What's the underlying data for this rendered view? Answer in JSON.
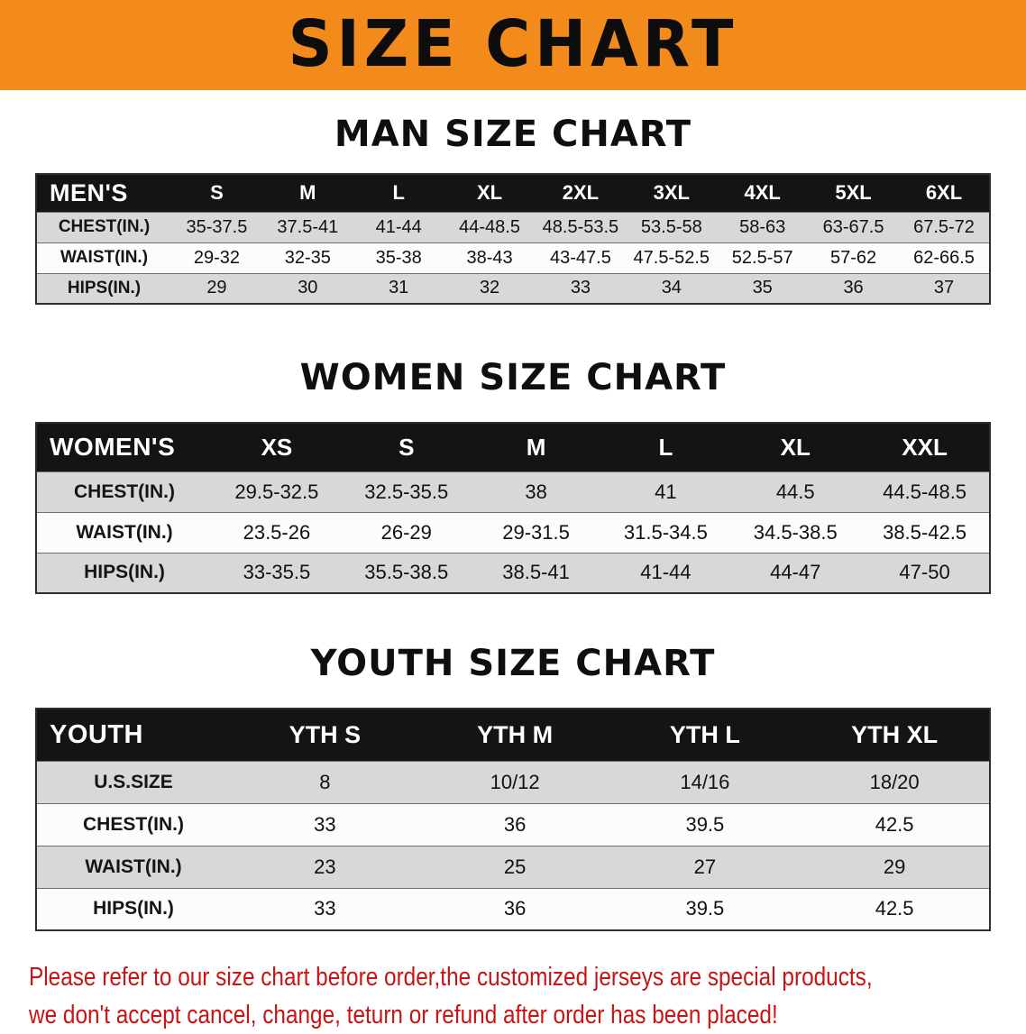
{
  "banner": {
    "title": "SIZE CHART",
    "bg_color": "#f28a1c",
    "title_color": "#0d0d0d"
  },
  "men": {
    "heading": "MAN SIZE CHART",
    "table": {
      "header": [
        "MEN'S",
        "S",
        "M",
        "L",
        "XL",
        "2XL",
        "3XL",
        "4XL",
        "5XL",
        "6XL"
      ],
      "rows": [
        {
          "label": "CHEST(IN.)",
          "values": [
            "35-37.5",
            "37.5-41",
            "41-44",
            "44-48.5",
            "48.5-53.5",
            "53.5-58",
            "58-63",
            "63-67.5",
            "67.5-72"
          ]
        },
        {
          "label": "WAIST(IN.)",
          "values": [
            "29-32",
            "32-35",
            "35-38",
            "38-43",
            "43-47.5",
            "47.5-52.5",
            "52.5-57",
            "57-62",
            "62-66.5"
          ]
        },
        {
          "label": "HIPS(IN.)",
          "values": [
            "29",
            "30",
            "31",
            "32",
            "33",
            "34",
            "35",
            "36",
            "37"
          ]
        }
      ]
    }
  },
  "women": {
    "heading": "WOMEN SIZE CHART",
    "table": {
      "header": [
        "WOMEN'S",
        "XS",
        "S",
        "M",
        "L",
        "XL",
        "XXL"
      ],
      "rows": [
        {
          "label": "CHEST(IN.)",
          "values": [
            "29.5-32.5",
            "32.5-35.5",
            "38",
            "41",
            "44.5",
            "44.5-48.5"
          ]
        },
        {
          "label": "WAIST(IN.)",
          "values": [
            "23.5-26",
            "26-29",
            "29-31.5",
            "31.5-34.5",
            "34.5-38.5",
            "38.5-42.5"
          ]
        },
        {
          "label": "HIPS(IN.)",
          "values": [
            "33-35.5",
            "35.5-38.5",
            "38.5-41",
            "41-44",
            "44-47",
            "47-50"
          ]
        }
      ]
    }
  },
  "youth": {
    "heading": "YOUTH SIZE CHART",
    "table": {
      "header": [
        "YOUTH",
        "YTH S",
        "YTH M",
        "YTH L",
        "YTH XL"
      ],
      "rows": [
        {
          "label": "U.S.SIZE",
          "values": [
            "8",
            "10/12",
            "14/16",
            "18/20"
          ]
        },
        {
          "label": "CHEST(IN.)",
          "values": [
            "33",
            "36",
            "39.5",
            "42.5"
          ]
        },
        {
          "label": "WAIST(IN.)",
          "values": [
            "23",
            "25",
            "27",
            "29"
          ]
        },
        {
          "label": "HIPS(IN.)",
          "values": [
            "33",
            "36",
            "39.5",
            "42.5"
          ]
        }
      ]
    }
  },
  "footer": {
    "line1": "Please refer to our size chart before order,the customized jerseys are special products,",
    "line2": "we don't accept cancel, change, teturn or refund after order has been placed!",
    "text_color": "#c81414"
  }
}
